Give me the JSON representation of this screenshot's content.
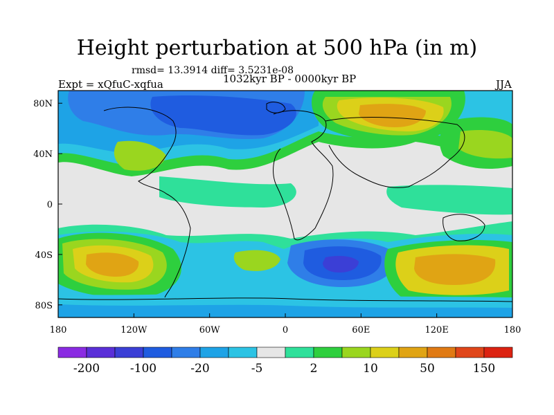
{
  "title": "Height perturbation at 500 hPa (in m)",
  "stats": "rmsd= 13.3914 diff= 3.5231e-08",
  "period": "1032kyr BP - 0000kyr BP",
  "expt": "Expt = xQfuC-xqfua",
  "season": "JJA",
  "colors": {
    "palette": [
      "#8a2be2",
      "#5a2fd8",
      "#3b3fd6",
      "#1f5ce0",
      "#2f7ee8",
      "#1ea3e6",
      "#2cc3e4",
      "#e6e6e6",
      "#2fe09a",
      "#2ecf3e",
      "#9ad61f",
      "#dcd019",
      "#e0a414",
      "#e07a14",
      "#e0461a",
      "#dc2312"
    ]
  },
  "chart_data": {
    "type": "heatmap",
    "projection": "cylindrical-equidistant",
    "x_ticks": [
      "180",
      "120W",
      "60W",
      "0",
      "60E",
      "120E",
      "180"
    ],
    "y_ticks": [
      "80N",
      "40N",
      "0",
      "40S",
      "80S"
    ],
    "colorbar_labels": [
      "-200",
      "-100",
      "-20",
      "-5",
      "2",
      "10",
      "50",
      "150"
    ],
    "xlim": [
      -180,
      180
    ],
    "ylim": [
      -90,
      90
    ]
  }
}
